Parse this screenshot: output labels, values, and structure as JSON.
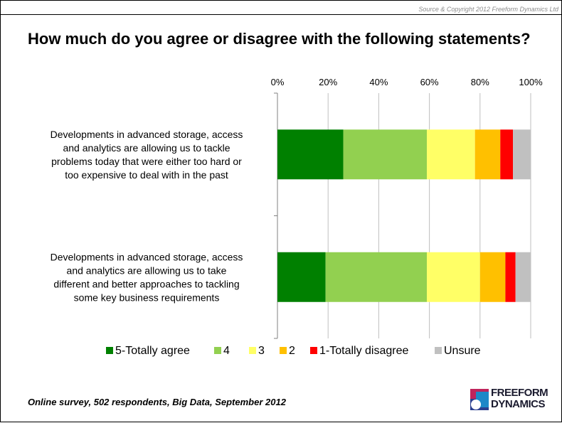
{
  "copyright": "Source & Copyright 2012 Freeform Dynamics Ltd",
  "footer": "Online survey, 502 respondents, Big Data, September 2012",
  "logo": {
    "line1": "FREEFORM",
    "line2": "DYNAMICS"
  },
  "chart_data": {
    "type": "bar",
    "orientation": "horizontal",
    "stacked": "percent",
    "title": "How much do you agree or disagree with the following statements?",
    "xlim": [
      0,
      100
    ],
    "x_ticks": [
      "0%",
      "20%",
      "40%",
      "60%",
      "80%",
      "100%"
    ],
    "categories": [
      "Developments in advanced storage, access and analytics are allowing us to tackle problems today that were either too hard or too expensive to deal with in the past",
      "Developments in advanced storage, access and analytics are allowing us to take different and better approaches to tackling some key business requirements"
    ],
    "category_lines": [
      [
        "Developments in advanced storage, access",
        "and analytics are allowing us to tackle",
        "problems today that were either too hard or",
        "too expensive to deal with in the past"
      ],
      [
        "Developments in advanced storage, access",
        "and analytics are allowing us to take",
        "different and better approaches to tackling",
        "some key business requirements"
      ]
    ],
    "series": [
      {
        "name": "5-Totally agree",
        "color": "#008000",
        "values": [
          26,
          19
        ]
      },
      {
        "name": "4",
        "color": "#92d050",
        "values": [
          33,
          40
        ]
      },
      {
        "name": "3",
        "color": "#ffff66",
        "values": [
          19,
          21
        ]
      },
      {
        "name": "2",
        "color": "#ffc000",
        "values": [
          10,
          10
        ]
      },
      {
        "name": "1-Totally disagree",
        "color": "#ff0000",
        "values": [
          5,
          4
        ]
      },
      {
        "name": "Unsure",
        "color": "#c0c0c0",
        "values": [
          7,
          6
        ]
      }
    ],
    "grid": true,
    "legend": "bottom"
  }
}
